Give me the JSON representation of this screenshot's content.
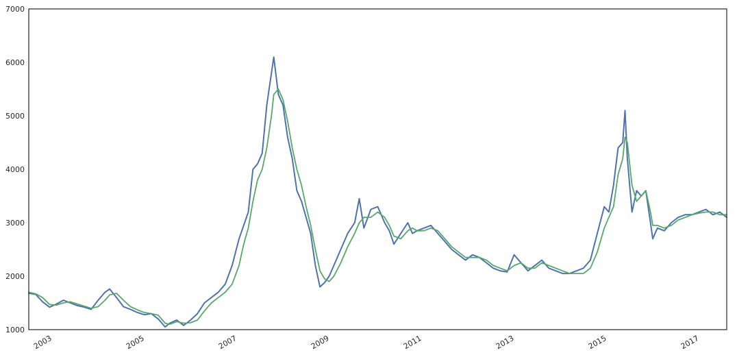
{
  "chart_data": {
    "type": "line",
    "title": "",
    "xlabel": "",
    "ylabel": "",
    "grid": false,
    "legend": "none",
    "xlim": [
      2002.55,
      2017.65
    ],
    "ylim": [
      1000,
      7000
    ],
    "x_ticks": [
      2003,
      2005,
      2007,
      2009,
      2011,
      2013,
      2015,
      2017
    ],
    "x_tick_labels": [
      "2003",
      "2005",
      "2007",
      "2009",
      "2011",
      "2013",
      "2015",
      "2017"
    ],
    "y_ticks": [
      1000,
      2000,
      3000,
      4000,
      5000,
      6000,
      7000
    ],
    "y_tick_labels": [
      "1000",
      "2000",
      "3000",
      "4000",
      "5000",
      "6000",
      "7000"
    ],
    "x": [
      2002.55,
      2002.7,
      2002.85,
      2003.0,
      2003.15,
      2003.3,
      2003.45,
      2003.6,
      2003.75,
      2003.9,
      2004.05,
      2004.2,
      2004.3,
      2004.45,
      2004.6,
      2004.75,
      2004.9,
      2005.05,
      2005.2,
      2005.35,
      2005.5,
      2005.6,
      2005.75,
      2005.9,
      2006.05,
      2006.2,
      2006.35,
      2006.5,
      2006.65,
      2006.8,
      2006.95,
      2007.1,
      2007.2,
      2007.3,
      2007.4,
      2007.5,
      2007.6,
      2007.7,
      2007.8,
      2007.85,
      2007.95,
      2008.05,
      2008.15,
      2008.25,
      2008.35,
      2008.45,
      2008.55,
      2008.65,
      2008.75,
      2008.85,
      2008.95,
      2009.05,
      2009.15,
      2009.3,
      2009.45,
      2009.6,
      2009.7,
      2009.8,
      2009.95,
      2010.1,
      2010.25,
      2010.35,
      2010.45,
      2010.6,
      2010.75,
      2010.85,
      2010.95,
      2011.1,
      2011.25,
      2011.4,
      2011.55,
      2011.7,
      2011.85,
      2012.0,
      2012.15,
      2012.3,
      2012.45,
      2012.6,
      2012.75,
      2012.9,
      2013.05,
      2013.2,
      2013.35,
      2013.5,
      2013.65,
      2013.8,
      2013.95,
      2014.1,
      2014.25,
      2014.4,
      2014.55,
      2014.7,
      2014.85,
      2015.0,
      2015.1,
      2015.2,
      2015.3,
      2015.4,
      2015.45,
      2015.5,
      2015.55,
      2015.6,
      2015.7,
      2015.8,
      2015.9,
      2016.0,
      2016.05,
      2016.15,
      2016.3,
      2016.45,
      2016.6,
      2016.75,
      2016.9,
      2017.05,
      2017.2,
      2017.35,
      2017.5,
      2017.65
    ],
    "series": [
      {
        "color": "#4c72b0",
        "values": [
          1680,
          1660,
          1520,
          1420,
          1480,
          1550,
          1500,
          1450,
          1420,
          1380,
          1550,
          1700,
          1760,
          1600,
          1430,
          1380,
          1320,
          1280,
          1300,
          1200,
          1050,
          1120,
          1180,
          1080,
          1180,
          1300,
          1500,
          1600,
          1700,
          1850,
          2200,
          2700,
          2950,
          3200,
          4000,
          4100,
          4300,
          5200,
          5800,
          6100,
          5400,
          5200,
          4600,
          4200,
          3600,
          3400,
          3100,
          2800,
          2200,
          1800,
          1880,
          2000,
          2200,
          2500,
          2800,
          3000,
          3450,
          2900,
          3250,
          3300,
          3000,
          2850,
          2600,
          2800,
          3000,
          2800,
          2850,
          2900,
          2950,
          2800,
          2650,
          2500,
          2400,
          2300,
          2400,
          2350,
          2250,
          2150,
          2100,
          2080,
          2400,
          2250,
          2100,
          2200,
          2300,
          2150,
          2100,
          2050,
          2050,
          2100,
          2150,
          2300,
          2800,
          3300,
          3200,
          3700,
          4400,
          4500,
          5100,
          4200,
          3700,
          3200,
          3600,
          3500,
          3600,
          3000,
          2700,
          2900,
          2850,
          3000,
          3100,
          3150,
          3150,
          3200,
          3250,
          3150,
          3200,
          3100
        ]
      },
      {
        "color": "#55a868",
        "values": [
          1700,
          1670,
          1600,
          1470,
          1460,
          1500,
          1520,
          1480,
          1440,
          1400,
          1430,
          1550,
          1650,
          1680,
          1550,
          1430,
          1370,
          1320,
          1300,
          1270,
          1120,
          1100,
          1150,
          1120,
          1130,
          1180,
          1350,
          1500,
          1600,
          1700,
          1850,
          2200,
          2600,
          2900,
          3400,
          3800,
          4000,
          4400,
          5000,
          5400,
          5500,
          5300,
          4900,
          4400,
          4000,
          3700,
          3300,
          2950,
          2500,
          2100,
          1950,
          1900,
          2000,
          2250,
          2550,
          2800,
          3000,
          3100,
          3100,
          3200,
          3100,
          2950,
          2750,
          2700,
          2850,
          2900,
          2850,
          2850,
          2900,
          2850,
          2700,
          2550,
          2450,
          2350,
          2350,
          2350,
          2300,
          2200,
          2150,
          2100,
          2200,
          2250,
          2150,
          2150,
          2250,
          2200,
          2150,
          2100,
          2050,
          2050,
          2050,
          2150,
          2450,
          2900,
          3100,
          3300,
          3900,
          4200,
          4600,
          4500,
          4100,
          3700,
          3400,
          3500,
          3600,
          3200,
          2950,
          2950,
          2900,
          2950,
          3050,
          3100,
          3150,
          3180,
          3200,
          3200,
          3150,
          3150
        ]
      }
    ]
  }
}
